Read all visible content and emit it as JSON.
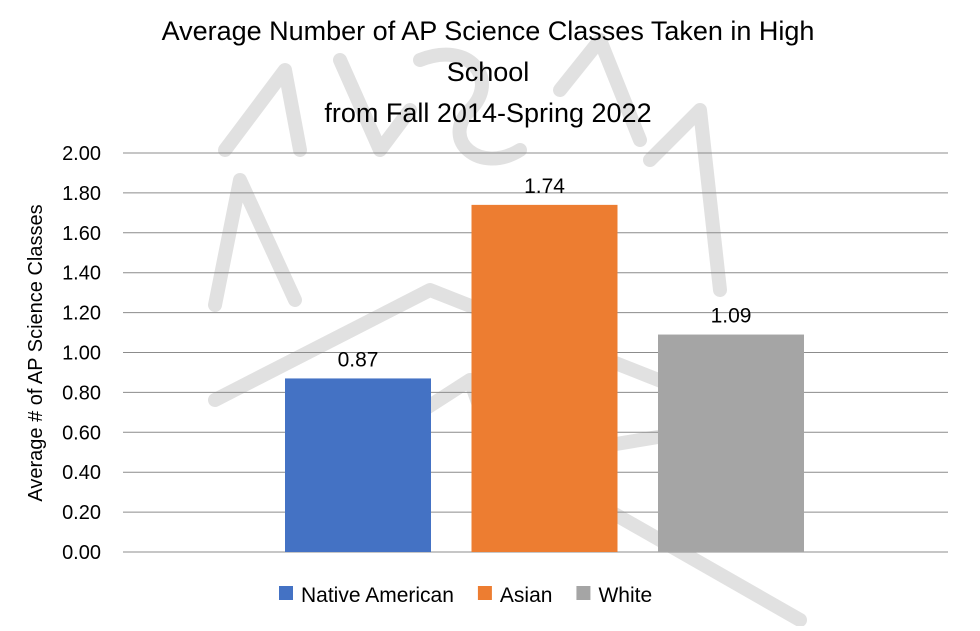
{
  "chart_data": {
    "type": "bar",
    "title_lines": [
      "Average Number of AP Science Classes Taken in High",
      "School",
      "from Fall 2014-Spring 2022"
    ],
    "xlabel": "",
    "ylabel": "Average # of AP Science Classes",
    "ylim": [
      0,
      2.0
    ],
    "ytick_step": 0.2,
    "ytick_decimals": 2,
    "grid": true,
    "legend_position": "bottom",
    "series": [
      {
        "name": "Native American",
        "value": 0.87,
        "label": "0.87",
        "color": "#4472c4"
      },
      {
        "name": "Asian",
        "value": 1.74,
        "label": "1.74",
        "color": "#ed7d31"
      },
      {
        "name": "White",
        "value": 1.09,
        "label": "1.09",
        "color": "#a5a5a5"
      }
    ]
  },
  "watermark": {
    "text": "NASA"
  }
}
